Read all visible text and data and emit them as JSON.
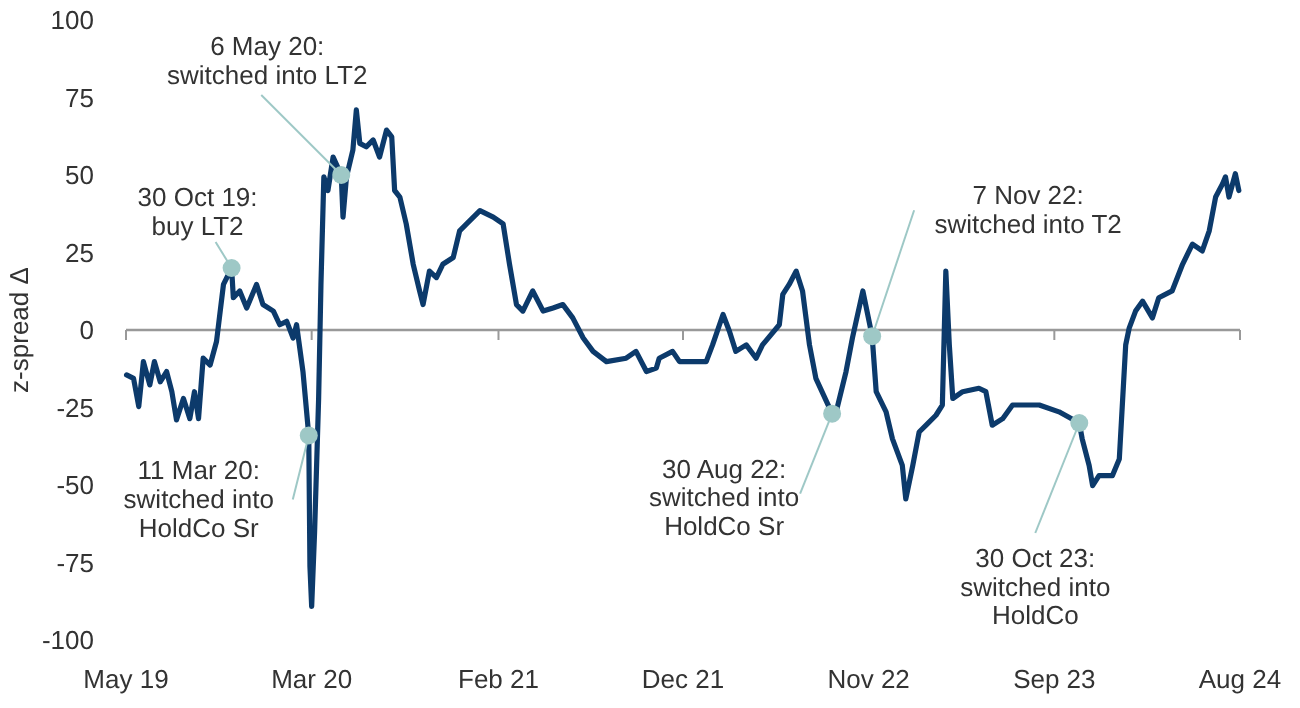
{
  "chart_data": {
    "type": "line",
    "ylabel": "z-spread Δ",
    "ylim": [
      -100,
      100
    ],
    "yticks": [
      -100,
      -75,
      -50,
      -25,
      0,
      25,
      50,
      75,
      100
    ],
    "xlim": [
      "2019-05-01",
      "2024-08-02"
    ],
    "xticks": [
      {
        "value": "2019-05-01",
        "label": "May 19"
      },
      {
        "value": "2020-03-16",
        "label": "Mar 20"
      },
      {
        "value": "2021-02-01",
        "label": "Feb 21"
      },
      {
        "value": "2021-12-16",
        "label": "Dec 21"
      },
      {
        "value": "2022-11-01",
        "label": "Nov 22"
      },
      {
        "value": "2023-09-17",
        "label": "Sep 23"
      },
      {
        "value": "2024-08-02",
        "label": "Aug 24"
      }
    ],
    "x": [
      "2019-05-02",
      "2019-05-14",
      "2019-05-23",
      "2019-05-31",
      "2019-06-11",
      "2019-06-19",
      "2019-06-29",
      "2019-07-10",
      "2019-07-19",
      "2019-07-27",
      "2019-08-08",
      "2019-08-19",
      "2019-08-27",
      "2019-09-03",
      "2019-09-11",
      "2019-09-23",
      "2019-10-04",
      "2019-10-16",
      "2019-10-30",
      "2019-11-02",
      "2019-11-13",
      "2019-11-25",
      "2019-12-12",
      "2019-12-23",
      "2020-01-10",
      "2020-01-21",
      "2020-02-02",
      "2020-02-13",
      "2020-02-19",
      "2020-03-01",
      "2020-03-11",
      "2020-03-13",
      "2020-03-16",
      "2020-03-21",
      "2020-03-28",
      "2020-04-01",
      "2020-04-06",
      "2020-04-13",
      "2020-04-22",
      "2020-05-06",
      "2020-05-09",
      "2020-05-15",
      "2020-05-26",
      "2020-06-01",
      "2020-06-07",
      "2020-06-18",
      "2020-06-30",
      "2020-07-11",
      "2020-07-23",
      "2020-08-01",
      "2020-08-06",
      "2020-08-15",
      "2020-08-26",
      "2020-09-07",
      "2020-09-18",
      "2020-09-24",
      "2020-10-05",
      "2020-10-17",
      "2020-10-28",
      "2020-11-15",
      "2020-11-26",
      "2020-12-08",
      "2020-12-31",
      "2021-01-23",
      "2021-02-09",
      "2021-02-20",
      "2021-03-04",
      "2021-03-15",
      "2021-04-01",
      "2021-04-19",
      "2021-05-06",
      "2021-05-23",
      "2021-06-09",
      "2021-06-27",
      "2021-07-14",
      "2021-08-06",
      "2021-09-09",
      "2021-09-26",
      "2021-10-14",
      "2021-10-31",
      "2021-11-05",
      "2021-11-28",
      "2021-12-10",
      "2022-01-25",
      "2022-02-05",
      "2022-02-23",
      "2022-03-06",
      "2022-03-17",
      "2022-04-04",
      "2022-04-21",
      "2022-05-02",
      "2022-05-31",
      "2022-06-06",
      "2022-06-17",
      "2022-06-29",
      "2022-07-10",
      "2022-07-22",
      "2022-08-02",
      "2022-08-30",
      "2022-09-06",
      "2022-09-23",
      "2022-10-04",
      "2022-10-22",
      "2022-11-07",
      "2022-11-14",
      "2022-12-01",
      "2022-12-12",
      "2022-12-29",
      "2023-01-04",
      "2023-01-16",
      "2023-01-27",
      "2023-02-08",
      "2023-02-25",
      "2023-03-08",
      "2023-03-14",
      "2023-03-20",
      "2023-03-26",
      "2023-04-12",
      "2023-05-10",
      "2023-05-22",
      "2023-06-02",
      "2023-06-20",
      "2023-07-07",
      "2023-07-30",
      "2023-08-22",
      "2023-09-25",
      "2023-10-30",
      "2023-11-04",
      "2023-11-16",
      "2023-11-22",
      "2023-12-03",
      "2023-12-26",
      "2024-01-07",
      "2024-01-18",
      "2024-01-24",
      "2024-02-04",
      "2024-02-16",
      "2024-03-04",
      "2024-03-15",
      "2024-04-07",
      "2024-04-25",
      "2024-05-12",
      "2024-05-29",
      "2024-06-10",
      "2024-06-21",
      "2024-07-03",
      "2024-07-08",
      "2024-07-14",
      "2024-07-25",
      "2024-07-31"
    ],
    "series": [
      {
        "color": "#0c3a6b",
        "values": [
          -14.5,
          -15.6,
          -24.7,
          -10.2,
          -17.7,
          -10.2,
          -16.7,
          -13.4,
          -19.9,
          -29,
          -22.1,
          -28.6,
          -19.9,
          -28.6,
          -9.1,
          -11.3,
          -3.7,
          14.7,
          20,
          10.4,
          12.6,
          7.1,
          14.7,
          8.2,
          6.1,
          1.7,
          2.8,
          -2.6,
          1.7,
          -13.4,
          -34,
          -76.2,
          -89.2,
          -65.4,
          -22.1,
          14.7,
          49.4,
          45,
          55.8,
          50,
          36.4,
          49.4,
          58,
          71,
          60.2,
          59.1,
          61.3,
          55.8,
          64.5,
          62.3,
          45,
          42.9,
          34.2,
          21.2,
          12.6,
          8.2,
          19,
          16.9,
          21.2,
          23.4,
          32,
          34.2,
          38.5,
          36.4,
          34.2,
          21.2,
          8.2,
          6.1,
          12.6,
          6.1,
          7.1,
          8.2,
          3.9,
          -2.6,
          -6.9,
          -10.2,
          -9.1,
          -6.9,
          -13.4,
          -12.3,
          -9.1,
          -6.9,
          -10.2,
          -10.2,
          -4.8,
          5,
          -0.4,
          -6.9,
          -4.8,
          -9.1,
          -4.8,
          1.7,
          11.5,
          14.7,
          19,
          12.6,
          -4.8,
          -15.6,
          -27,
          -26.4,
          -13.4,
          -2.6,
          12.6,
          -2,
          -19.9,
          -26.4,
          -35.1,
          -43.7,
          -54.5,
          -43.7,
          -32.9,
          -30.7,
          -27.5,
          -24.2,
          19,
          -4.8,
          -22.1,
          -19.9,
          -18.8,
          -19.9,
          -30.7,
          -28.6,
          -24.2,
          -24.2,
          -24.2,
          -26.4,
          -30,
          -35.1,
          -43.7,
          -50.2,
          -47,
          -47,
          -41.6,
          -4.8,
          0.6,
          6.1,
          9.3,
          3.9,
          10.4,
          12.6,
          21.2,
          27.7,
          25.5,
          32,
          42.9,
          47.2,
          49.4,
          42.9,
          50.4,
          45
        ]
      }
    ],
    "annotations": [
      {
        "text": "30 Oct 19:\nbuy LT2",
        "x": "2019-10-30",
        "y": 20
      },
      {
        "text": "6 May 20:\nswitched into LT2",
        "x": "2020-05-06",
        "y": 50
      },
      {
        "text": "11 Mar 20:\nswitched into\nHoldCo Sr",
        "x": "2020-03-11",
        "y": -34
      },
      {
        "text": "30 Aug 22:\nswitched into\nHoldCo Sr",
        "x": "2022-08-30",
        "y": -27
      },
      {
        "text": "7 Nov 22:\nswitched into T2",
        "x": "2022-11-07",
        "y": -2
      },
      {
        "text": "30 Oct 23:\nswitched into\nHoldCo",
        "x": "2023-10-30",
        "y": -30
      }
    ],
    "tick_labels": "xy"
  }
}
